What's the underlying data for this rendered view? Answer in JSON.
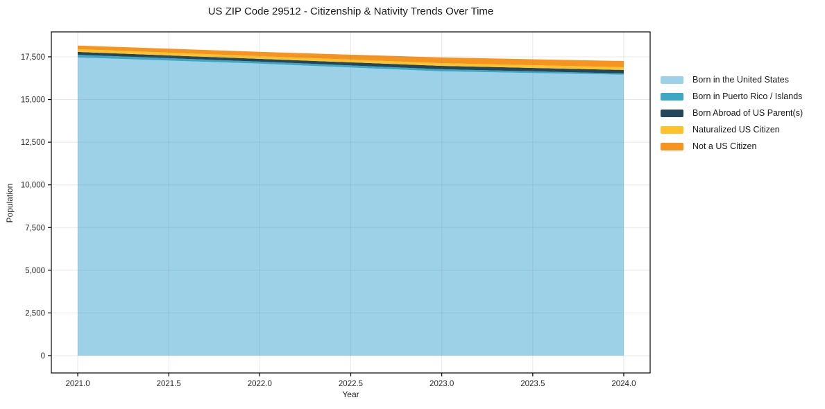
{
  "chart_data": {
    "type": "area",
    "stacked": true,
    "title": "US ZIP Code 29512 - Citizenship & Nativity Trends Over Time",
    "xlabel": "Year",
    "ylabel": "Population",
    "x": [
      2021,
      2022,
      2023,
      2024
    ],
    "series": [
      {
        "name": "Born in the United States",
        "color": "#9cd1e7",
        "values": [
          17460,
          17100,
          16650,
          16450
        ]
      },
      {
        "name": "Born in Puerto Rico / Islands",
        "color": "#3ea7c4",
        "values": [
          160,
          120,
          120,
          80
        ]
      },
      {
        "name": "Born Abroad of US Parent(s)",
        "color": "#24465a",
        "values": [
          165,
          160,
          200,
          200
        ]
      },
      {
        "name": "Naturalized US Citizen",
        "color": "#fcc32d",
        "values": [
          165,
          160,
          160,
          160
        ]
      },
      {
        "name": "Not a US Citizen",
        "color": "#f79420",
        "values": [
          210,
          250,
          330,
          365
        ]
      }
    ],
    "xlim": [
      2020.855,
      2024.145
    ],
    "ylim": [
      -1015,
      18960
    ],
    "x_ticks": [
      {
        "value": 2021.0,
        "label": "2021.0"
      },
      {
        "value": 2021.5,
        "label": "2021.5"
      },
      {
        "value": 2022.0,
        "label": "2022.0"
      },
      {
        "value": 2022.5,
        "label": "2022.5"
      },
      {
        "value": 2023.0,
        "label": "2023.0"
      },
      {
        "value": 2023.5,
        "label": "2023.5"
      },
      {
        "value": 2024.0,
        "label": "2024.0"
      }
    ],
    "y_ticks": [
      {
        "value": 0,
        "label": "0"
      },
      {
        "value": 2500,
        "label": "2,500"
      },
      {
        "value": 5000,
        "label": "5,000"
      },
      {
        "value": 7500,
        "label": "7,500"
      },
      {
        "value": 10000,
        "label": "10,000"
      },
      {
        "value": 12500,
        "label": "12,500"
      },
      {
        "value": 15000,
        "label": "15,000"
      },
      {
        "value": 17500,
        "label": "17,500"
      }
    ],
    "grid": true,
    "legend_position": "right-outside",
    "colors": {
      "frame": "#000000",
      "gridline": "rgba(128,128,128,0.18)",
      "tick_text": "#262626",
      "title_text": "#1a1a1a"
    }
  }
}
